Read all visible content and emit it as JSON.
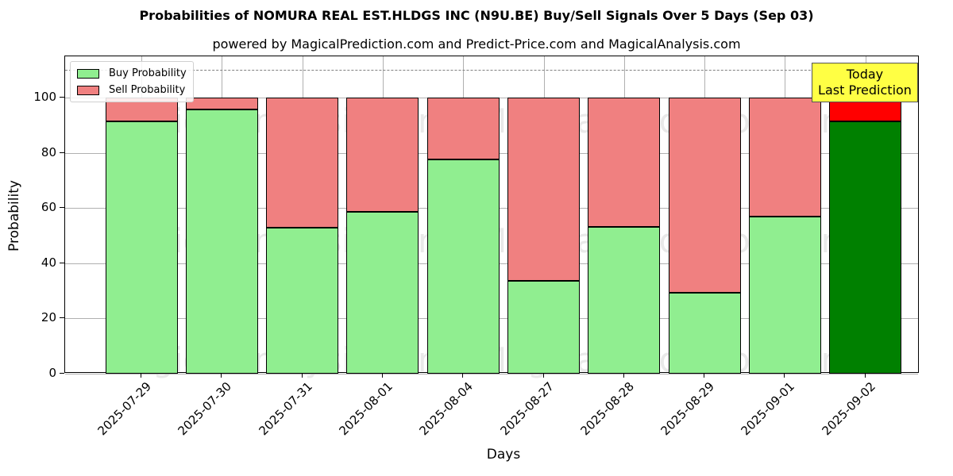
{
  "title": "Probabilities of NOMURA REAL EST.HLDGS INC (N9U.BE) Buy/Sell Signals Over 5 Days (Sep 03)",
  "subtitle": "powered by MagicalPrediction.com and Predict-Price.com and MagicalAnalysis.com",
  "annotation": {
    "line1": "Today",
    "line2": "Last Prediction"
  },
  "watermarks": [
    "MagicalAnalysis.com",
    "MagicalPrediction.com"
  ],
  "colors": {
    "buy": "#90ee90",
    "sell": "#f08080",
    "buy_today": "#008000",
    "sell_today": "#ff0000",
    "today_box": "#ffff44"
  },
  "chart_data": {
    "type": "bar",
    "stacked": true,
    "title": "Probabilities of NOMURA REAL EST.HLDGS INC (N9U.BE) Buy/Sell Signals Over 5 Days (Sep 03)",
    "subtitle": "powered by MagicalPrediction.com and Predict-Price.com and MagicalAnalysis.com",
    "xlabel": "Days",
    "ylabel": "Probability",
    "ylim": [
      0,
      115
    ],
    "yticks": [
      0,
      20,
      40,
      60,
      80,
      100
    ],
    "reference_line": 110,
    "grid": true,
    "legend_position": "upper left",
    "categories": [
      "2025-07-29",
      "2025-07-30",
      "2025-07-31",
      "2025-08-01",
      "2025-08-04",
      "2025-08-27",
      "2025-08-28",
      "2025-08-29",
      "2025-09-01",
      "2025-09-02"
    ],
    "series": [
      {
        "name": "Buy Probability",
        "values": [
          91.3,
          95.7,
          52.9,
          58.7,
          77.7,
          33.5,
          53.2,
          29.2,
          56.9,
          91.3
        ]
      },
      {
        "name": "Sell Probability",
        "values": [
          8.7,
          4.3,
          47.1,
          41.3,
          22.3,
          66.5,
          46.8,
          70.8,
          43.1,
          8.7
        ]
      }
    ],
    "annotations": [
      {
        "text": "Today\nLast Prediction",
        "x": "2025-09-02"
      }
    ]
  }
}
